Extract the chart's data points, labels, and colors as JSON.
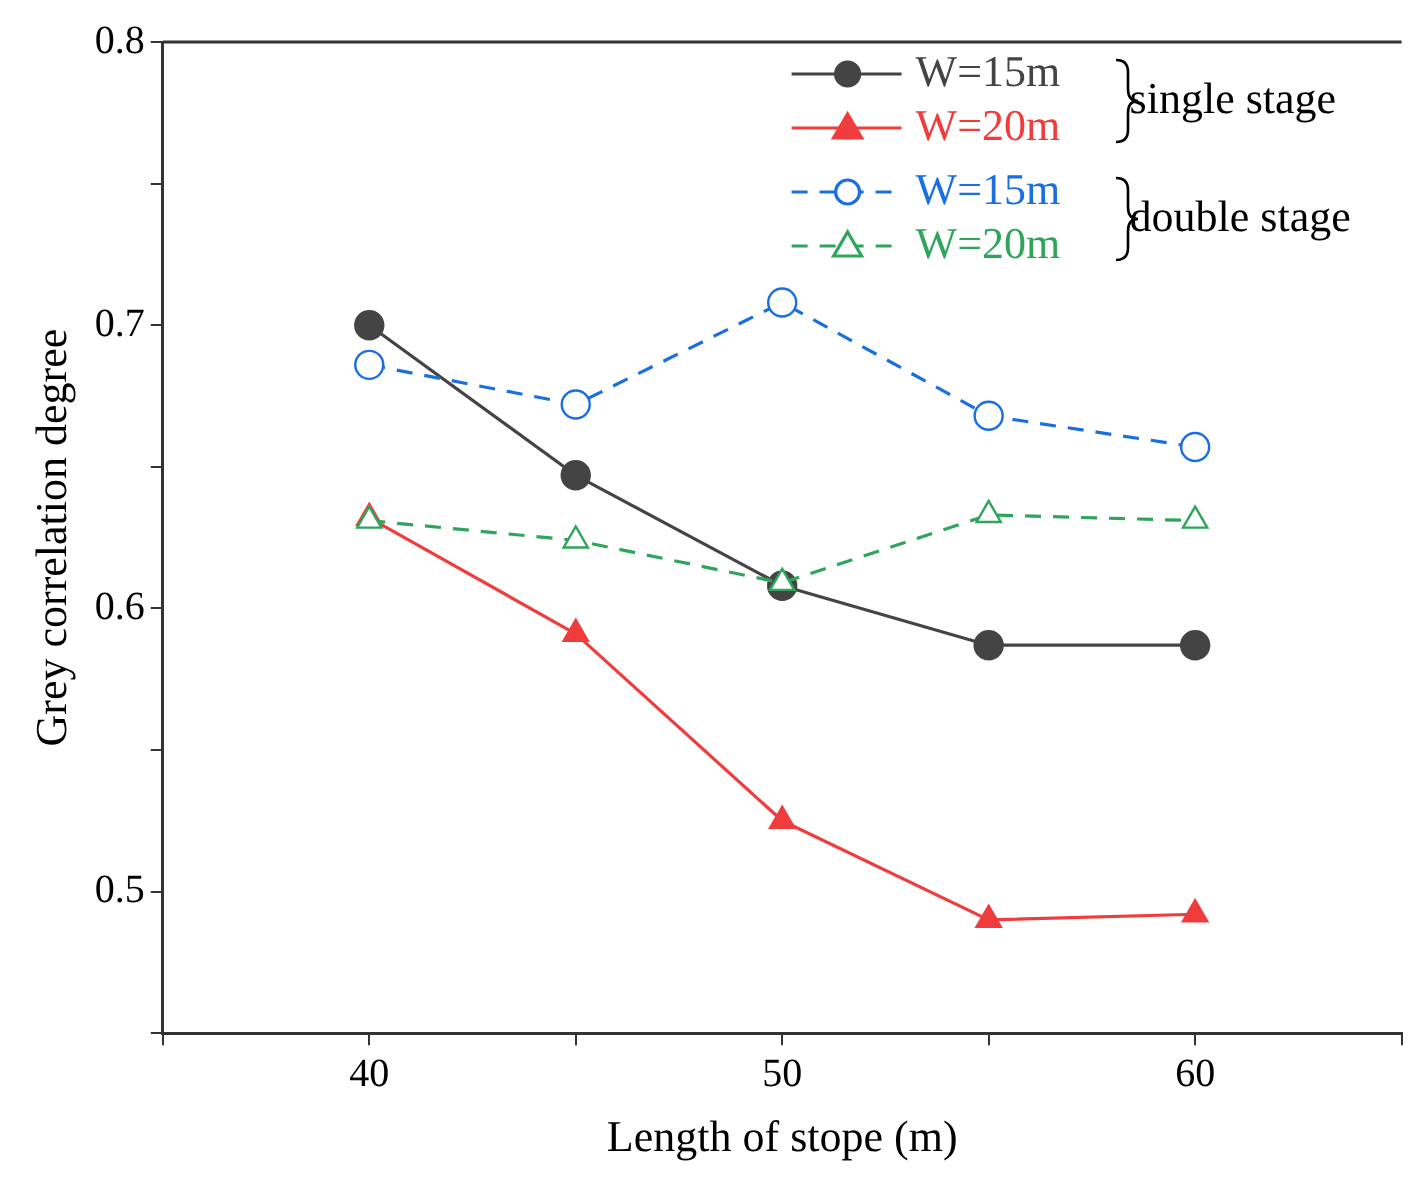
{
  "chart_data": {
    "type": "line",
    "xlabel": "Length of stope (m)",
    "ylabel": "Grey correlation degree",
    "x": [
      40,
      45,
      50,
      55,
      60
    ],
    "series": [
      {
        "name": "W=15m",
        "color": "#444444",
        "marker": "circle",
        "line_style": "solid",
        "values": [
          0.7,
          0.647,
          0.608,
          0.587,
          0.587
        ]
      },
      {
        "name": "W=20m",
        "color": "#f03c3c",
        "marker": "triangle",
        "line_style": "solid",
        "values": [
          0.632,
          0.591,
          0.525,
          0.49,
          0.492
        ]
      },
      {
        "name": "W=15m",
        "color": "#1a6fe0",
        "marker": "circle",
        "line_style": "dashed",
        "values": [
          0.686,
          0.672,
          0.708,
          0.668,
          0.657
        ]
      },
      {
        "name": "W=20m",
        "color": "#2ea55a",
        "marker": "triangle",
        "line_style": "dashed",
        "values": [
          0.631,
          0.624,
          0.609,
          0.633,
          0.631
        ]
      }
    ],
    "annotations": [
      "single stage",
      "double stage"
    ],
    "xlim": [
      35,
      65
    ],
    "xticks": [
      {
        "value": 35,
        "label": null
      },
      40,
      {
        "value": 45,
        "label": null
      },
      50,
      {
        "value": 55,
        "label": null
      },
      60,
      {
        "value": 65,
        "label": null
      }
    ],
    "ylim": [
      0.45,
      0.8
    ],
    "yticks": [
      {
        "value": 0.45,
        "label": null
      },
      0.5,
      {
        "value": 0.55,
        "label": null
      },
      0.6,
      {
        "value": 0.65,
        "label": null
      },
      0.7,
      {
        "value": 0.75,
        "label": null
      },
      0.8
    ],
    "grid": false,
    "legend": "top right"
  }
}
